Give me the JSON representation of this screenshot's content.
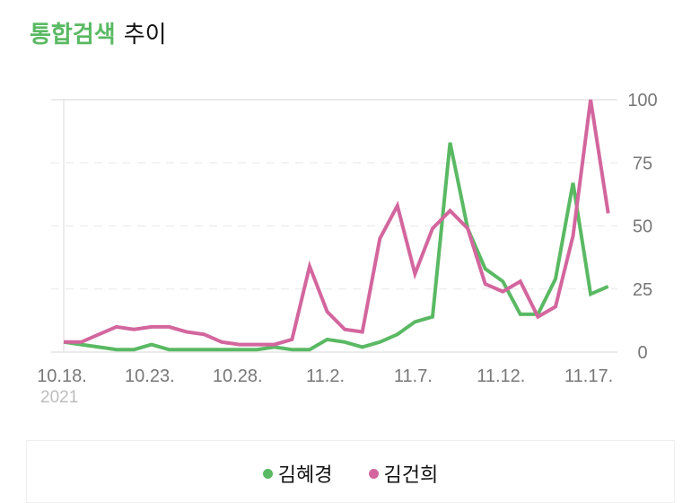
{
  "header": {
    "title_accent": "통합검색",
    "title_rest": "추이"
  },
  "chart_data": {
    "type": "line",
    "title": "통합검색 추이",
    "xlabel": "",
    "ylabel": "",
    "ylim": [
      0,
      100
    ],
    "yticks": [
      0,
      25,
      50,
      75,
      100
    ],
    "grid": true,
    "legend_position": "bottom",
    "year_label": "2021",
    "x": [
      "10.18.",
      "10.19.",
      "10.20.",
      "10.21.",
      "10.22.",
      "10.23.",
      "10.24.",
      "10.25.",
      "10.26.",
      "10.27.",
      "10.28.",
      "10.29.",
      "10.30.",
      "10.31.",
      "11.1.",
      "11.2.",
      "11.3.",
      "11.4.",
      "11.5.",
      "11.6.",
      "11.7.",
      "11.8.",
      "11.9.",
      "11.10.",
      "11.11.",
      "11.12.",
      "11.13.",
      "11.14.",
      "11.15.",
      "11.16.",
      "11.17.",
      "11.18."
    ],
    "xtick_labels": [
      "10.18.",
      "10.23.",
      "10.28.",
      "11.2.",
      "11.7.",
      "11.12.",
      "11.17."
    ],
    "series": [
      {
        "name": "김혜경",
        "color": "#5ab963",
        "values": [
          4,
          3,
          2,
          1,
          1,
          3,
          1,
          1,
          1,
          1,
          1,
          1,
          2,
          1,
          1,
          5,
          4,
          2,
          4,
          7,
          12,
          14,
          83,
          49,
          33,
          28,
          15,
          15,
          29,
          67,
          23,
          26
        ]
      },
      {
        "name": "김건희",
        "color": "#d3669e",
        "values": [
          4,
          4,
          7,
          10,
          9,
          10,
          10,
          8,
          7,
          4,
          3,
          3,
          3,
          5,
          34,
          16,
          9,
          8,
          45,
          58,
          31,
          49,
          56,
          49,
          27,
          24,
          28,
          14,
          18,
          46,
          100,
          55
        ]
      }
    ]
  }
}
